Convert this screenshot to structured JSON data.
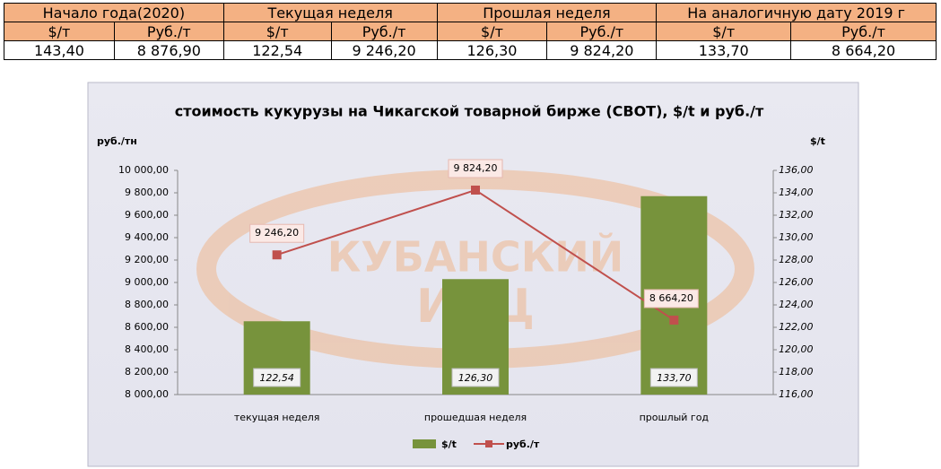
{
  "table": {
    "header": [
      "Начало года(2020)",
      "Текущая неделя",
      "Прошлая неделя",
      "На аналогичную дату 2019 г"
    ],
    "subheader": [
      "$/т",
      "Руб./т",
      "$/т",
      "Руб./т",
      "$/т",
      "Руб./т",
      "$/т",
      "Руб./т"
    ],
    "rows": [
      [
        "143,40",
        "8 876,90",
        "122,54",
        "9 246,20",
        "126,30",
        "9 824,20",
        "133,70",
        "8 664,20"
      ]
    ]
  },
  "chart_data": {
    "type": "combo",
    "title": "стоимость кукурузы на Чикагской товарной бирже (CBOT), $/t и руб./т",
    "ylabel": "руб./тн",
    "y2label": "$/t",
    "watermark": [
      "КУБАНСКИЙ",
      "ИАЦ"
    ],
    "categories": [
      "текущая неделя",
      "прошедшая неделя",
      "прошлый год"
    ],
    "series": [
      {
        "name": "$/t",
        "type": "bar",
        "axis": "y2",
        "color": "#77933c",
        "values": [
          122.54,
          126.3,
          133.7
        ],
        "value_labels": [
          "122,54",
          "126,30",
          "133,70"
        ]
      },
      {
        "name": "руб./т",
        "type": "line",
        "color": "#c0504d",
        "values": [
          9246.2,
          9824.2,
          8664.2
        ],
        "value_labels": [
          "9 246,20",
          "9 824,20",
          "8 664,20"
        ]
      }
    ],
    "ylim": [
      8000,
      10000
    ],
    "yticks": [
      {
        "value": 8000,
        "label": "8 000,00"
      },
      {
        "value": 8200,
        "label": "8 200,00"
      },
      {
        "value": 8400,
        "label": "8 400,00"
      },
      {
        "value": 8600,
        "label": "8 600,00"
      },
      {
        "value": 8800,
        "label": "8 800,00"
      },
      {
        "value": 9000,
        "label": "9 000,00"
      },
      {
        "value": 9200,
        "label": "9 200,00"
      },
      {
        "value": 9400,
        "label": "9 400,00"
      },
      {
        "value": 9600,
        "label": "9 600,00"
      },
      {
        "value": 9800,
        "label": "9 800,00"
      },
      {
        "value": 10000,
        "label": "10 000,00"
      }
    ],
    "y2lim": [
      116,
      136
    ],
    "y2ticks": [
      {
        "value": 116,
        "label": "116,00"
      },
      {
        "value": 118,
        "label": "118,00"
      },
      {
        "value": 120,
        "label": "120,00"
      },
      {
        "value": 122,
        "label": "122,00"
      },
      {
        "value": 124,
        "label": "124,00"
      },
      {
        "value": 126,
        "label": "126,00"
      },
      {
        "value": 128,
        "label": "128,00"
      },
      {
        "value": 130,
        "label": "130,00"
      },
      {
        "value": 132,
        "label": "132,00"
      },
      {
        "value": 134,
        "label": "134,00"
      },
      {
        "value": 136,
        "label": "136,00"
      }
    ],
    "grid": false,
    "legend": "bottom"
  }
}
